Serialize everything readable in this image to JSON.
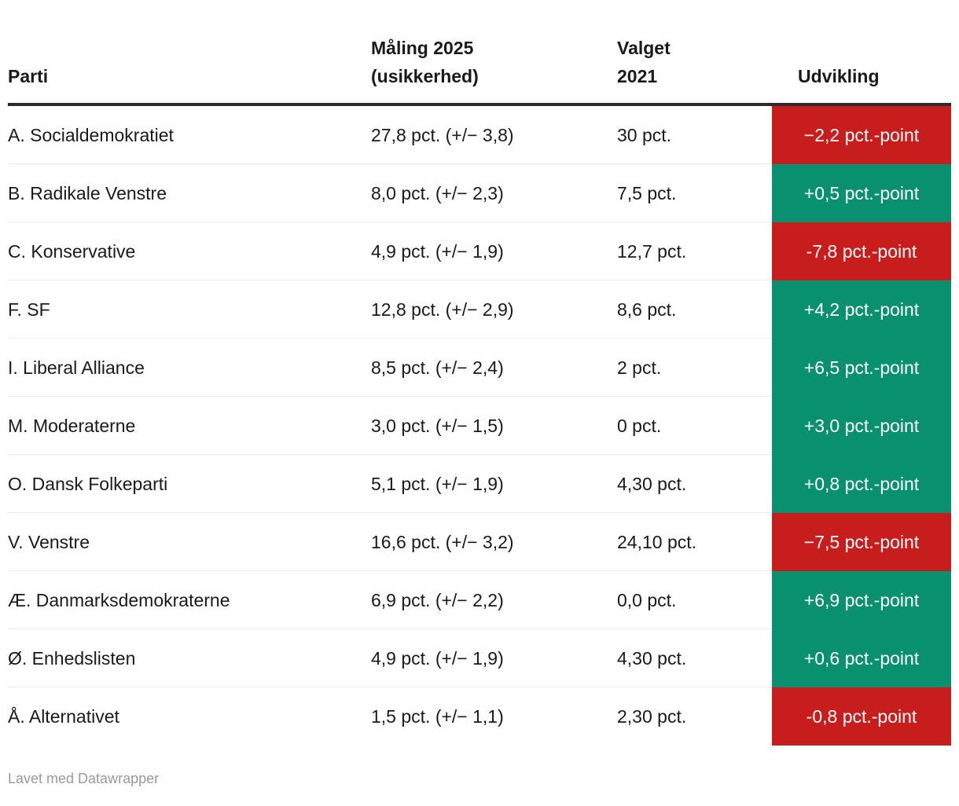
{
  "table": {
    "columns": {
      "party": "Parti",
      "polling_line1": "Måling 2025",
      "polling_line2": "(usikkerhed)",
      "election_line1": "Valget",
      "election_line2": "2021",
      "change": "Udvikling"
    },
    "rows": [
      {
        "party": "A. Socialdemokratiet",
        "polling": "27,8 pct. (+/− 3,8)",
        "election": "30 pct.",
        "change": "−2,2 pct.-point"
      },
      {
        "party": "B. Radikale Venstre",
        "polling": "8,0 pct. (+/− 2,3)",
        "election": "7,5 pct.",
        "change": "+0,5 pct.-point"
      },
      {
        "party": "C. Konservative",
        "polling": "4,9 pct. (+/− 1,9)",
        "election": "12,7 pct.",
        "change": "-7,8 pct.-point"
      },
      {
        "party": "F. SF",
        "polling": "12,8 pct. (+/− 2,9)",
        "election": "8,6 pct.",
        "change": "+4,2 pct.-point"
      },
      {
        "party": "I. Liberal Alliance",
        "polling": "8,5 pct. (+/− 2,4)",
        "election": "2 pct.",
        "change": "+6,5 pct.-point"
      },
      {
        "party": "M. Moderaterne",
        "polling": "3,0 pct. (+/− 1,5)",
        "election": "0 pct.",
        "change": "+3,0 pct.-point"
      },
      {
        "party": "O. Dansk Folkeparti",
        "polling": "5,1 pct. (+/− 1,9)",
        "election": "4,30 pct.",
        "change": "+0,8 pct.-point"
      },
      {
        "party": "V. Venstre",
        "polling": "16,6 pct. (+/− 3,2)",
        "election": "24,10 pct.",
        "change": "−7,5 pct.-point"
      },
      {
        "party": "Æ. Danmarksdemokraterne",
        "polling": "6,9 pct. (+/− 2,2)",
        "election": "0,0 pct.",
        "change": "+6,9 pct.-point"
      },
      {
        "party": "Ø. Enhedslisten",
        "polling": "4,9 pct. (+/− 1,9)",
        "election": "4,30 pct.",
        "change": "+0,6 pct.-point"
      },
      {
        "party": "Å. Alternativet",
        "polling": "1,5 pct. (+/− 1,1)",
        "election": "2,30 pct.",
        "change": "-0,8 pct.-point"
      }
    ]
  },
  "footer": {
    "credit": "Lavet med Datawrapper"
  },
  "colors": {
    "positive": "#08906f",
    "negative": "#c71e1d",
    "text": "#1a1a1a",
    "header_rule": "#2b2b2b",
    "row_divider": "#ededed",
    "footer_text": "#9a9a9a"
  },
  "chart_data": {
    "type": "table",
    "columns": [
      "Parti",
      "Måling 2025 (usikkerhed)",
      "Valget 2021",
      "Udvikling"
    ],
    "rows": [
      {
        "parti": "A. Socialdemokratiet",
        "maaling_pct": 27.8,
        "usikkerhed": 3.8,
        "valget_2021_pct": 30.0,
        "udvikling_pct_point": -2.2
      },
      {
        "parti": "B. Radikale Venstre",
        "maaling_pct": 8.0,
        "usikkerhed": 2.3,
        "valget_2021_pct": 7.5,
        "udvikling_pct_point": 0.5
      },
      {
        "parti": "C. Konservative",
        "maaling_pct": 4.9,
        "usikkerhed": 1.9,
        "valget_2021_pct": 12.7,
        "udvikling_pct_point": -7.8
      },
      {
        "parti": "F. SF",
        "maaling_pct": 12.8,
        "usikkerhed": 2.9,
        "valget_2021_pct": 8.6,
        "udvikling_pct_point": 4.2
      },
      {
        "parti": "I. Liberal Alliance",
        "maaling_pct": 8.5,
        "usikkerhed": 2.4,
        "valget_2021_pct": 2.0,
        "udvikling_pct_point": 6.5
      },
      {
        "parti": "M. Moderaterne",
        "maaling_pct": 3.0,
        "usikkerhed": 1.5,
        "valget_2021_pct": 0.0,
        "udvikling_pct_point": 3.0
      },
      {
        "parti": "O. Dansk Folkeparti",
        "maaling_pct": 5.1,
        "usikkerhed": 1.9,
        "valget_2021_pct": 4.3,
        "udvikling_pct_point": 0.8
      },
      {
        "parti": "V. Venstre",
        "maaling_pct": 16.6,
        "usikkerhed": 3.2,
        "valget_2021_pct": 24.1,
        "udvikling_pct_point": -7.5
      },
      {
        "parti": "Æ. Danmarksdemokraterne",
        "maaling_pct": 6.9,
        "usikkerhed": 2.2,
        "valget_2021_pct": 0.0,
        "udvikling_pct_point": 6.9
      },
      {
        "parti": "Ø. Enhedslisten",
        "maaling_pct": 4.9,
        "usikkerhed": 1.9,
        "valget_2021_pct": 4.3,
        "udvikling_pct_point": 0.6
      },
      {
        "parti": "Å. Alternativet",
        "maaling_pct": 1.5,
        "usikkerhed": 1.1,
        "valget_2021_pct": 2.3,
        "udvikling_pct_point": -0.8
      }
    ],
    "cell_colors": {
      "udvikling_positive": "#08906f",
      "udvikling_negative": "#c71e1d"
    },
    "legend_position": "none",
    "grid": "row-dividers"
  }
}
